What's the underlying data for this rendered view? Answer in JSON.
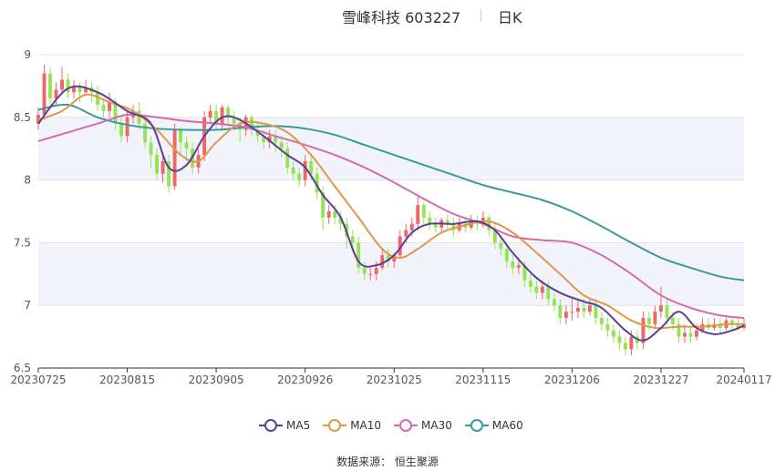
{
  "header": {
    "title": "雪峰科技 603227",
    "subtitle": "日K"
  },
  "source_text": "数据来源： 恒生聚源",
  "colors": {
    "up": "#ee6666",
    "down": "#91e552",
    "ma5": "#5b3e96",
    "ma10": "#e0974a",
    "ma30": "#d46bb0",
    "ma60": "#3a9a9a",
    "band": "#f3f4fb",
    "grid": "#e3e3e3"
  },
  "chart_data": {
    "type": "candlestick",
    "title": "雪峰科技 603227",
    "subtitle": "日K",
    "ylim": [
      6.5,
      9
    ],
    "yticks": [
      "6.5",
      "7",
      "7.5",
      "8",
      "8.5",
      "9"
    ],
    "xtick_labels": [
      "20230725",
      "20230815",
      "20230905",
      "20230926",
      "20231025",
      "20231115",
      "20231206",
      "20231227",
      "20240117"
    ],
    "xtick_positions": [
      0,
      15,
      30,
      45,
      60,
      75,
      90,
      105,
      119
    ],
    "legend": [
      "MA5",
      "MA10",
      "MA30",
      "MA60"
    ],
    "n_days": 120,
    "candles": [
      [
        8.45,
        8.52,
        8.58,
        8.4
      ],
      [
        8.52,
        8.85,
        8.92,
        8.48
      ],
      [
        8.85,
        8.65,
        8.9,
        8.6
      ],
      [
        8.65,
        8.72,
        8.78,
        8.6
      ],
      [
        8.72,
        8.8,
        8.9,
        8.68
      ],
      [
        8.8,
        8.7,
        8.85,
        8.65
      ],
      [
        8.7,
        8.75,
        8.8,
        8.65
      ],
      [
        8.75,
        8.7,
        8.78,
        8.62
      ],
      [
        8.7,
        8.74,
        8.8,
        8.68
      ],
      [
        8.74,
        8.7,
        8.78,
        8.62
      ],
      [
        8.7,
        8.6,
        8.75,
        8.55
      ],
      [
        8.6,
        8.55,
        8.65,
        8.5
      ],
      [
        8.55,
        8.62,
        8.7,
        8.5
      ],
      [
        8.62,
        8.45,
        8.65,
        8.4
      ],
      [
        8.45,
        8.35,
        8.5,
        8.3
      ],
      [
        8.35,
        8.5,
        8.55,
        8.3
      ],
      [
        8.5,
        8.55,
        8.6,
        8.45
      ],
      [
        8.55,
        8.45,
        8.62,
        8.4
      ],
      [
        8.45,
        8.3,
        8.5,
        8.25
      ],
      [
        8.3,
        8.2,
        8.35,
        8.1
      ],
      [
        8.2,
        8.05,
        8.25,
        8.0
      ],
      [
        8.05,
        8.15,
        8.2,
        7.98
      ],
      [
        8.15,
        7.95,
        8.2,
        7.9
      ],
      [
        7.95,
        8.4,
        8.45,
        7.92
      ],
      [
        8.4,
        8.3,
        8.42,
        8.2
      ],
      [
        8.3,
        8.25,
        8.35,
        8.15
      ],
      [
        8.25,
        8.1,
        8.3,
        8.05
      ],
      [
        8.1,
        8.2,
        8.25,
        8.05
      ],
      [
        8.2,
        8.5,
        8.55,
        8.15
      ],
      [
        8.5,
        8.55,
        8.6,
        8.45
      ],
      [
        8.55,
        8.45,
        8.6,
        8.4
      ],
      [
        8.45,
        8.58,
        8.6,
        8.4
      ],
      [
        8.58,
        8.5,
        8.6,
        8.45
      ],
      [
        8.5,
        8.45,
        8.55,
        8.4
      ],
      [
        8.45,
        8.4,
        8.5,
        8.3
      ],
      [
        8.4,
        8.5,
        8.52,
        8.35
      ],
      [
        8.5,
        8.4,
        8.52,
        8.35
      ],
      [
        8.4,
        8.35,
        8.45,
        8.3
      ],
      [
        8.35,
        8.3,
        8.4,
        8.25
      ],
      [
        8.3,
        8.35,
        8.4,
        8.25
      ],
      [
        8.35,
        8.3,
        8.4,
        8.22
      ],
      [
        8.3,
        8.25,
        8.35,
        8.18
      ],
      [
        8.25,
        8.1,
        8.3,
        8.05
      ],
      [
        8.1,
        8.05,
        8.15,
        8.0
      ],
      [
        8.05,
        8.0,
        8.1,
        7.95
      ],
      [
        8.0,
        8.15,
        8.2,
        7.95
      ],
      [
        8.15,
        8.05,
        8.2,
        8.0
      ],
      [
        8.05,
        7.9,
        8.1,
        7.85
      ],
      [
        7.9,
        7.7,
        7.95,
        7.6
      ],
      [
        7.7,
        7.75,
        7.8,
        7.65
      ],
      [
        7.75,
        7.7,
        7.8,
        7.65
      ],
      [
        7.7,
        7.65,
        7.75,
        7.6
      ],
      [
        7.65,
        7.55,
        7.7,
        7.45
      ],
      [
        7.55,
        7.5,
        7.6,
        7.45
      ],
      [
        7.5,
        7.3,
        7.55,
        7.25
      ],
      [
        7.3,
        7.25,
        7.35,
        7.2
      ],
      [
        7.25,
        7.25,
        7.3,
        7.2
      ],
      [
        7.25,
        7.3,
        7.35,
        7.2
      ],
      [
        7.3,
        7.4,
        7.45,
        7.28
      ],
      [
        7.4,
        7.35,
        7.45,
        7.3
      ],
      [
        7.35,
        7.4,
        7.42,
        7.3
      ],
      [
        7.4,
        7.55,
        7.6,
        7.38
      ],
      [
        7.55,
        7.6,
        7.65,
        7.5
      ],
      [
        7.6,
        7.65,
        7.7,
        7.55
      ],
      [
        7.65,
        7.8,
        7.88,
        7.6
      ],
      [
        7.8,
        7.7,
        7.82,
        7.65
      ],
      [
        7.7,
        7.65,
        7.75,
        7.6
      ],
      [
        7.65,
        7.62,
        7.7,
        7.58
      ],
      [
        7.62,
        7.68,
        7.7,
        7.58
      ],
      [
        7.68,
        7.65,
        7.72,
        7.6
      ],
      [
        7.65,
        7.6,
        7.7,
        7.55
      ],
      [
        7.6,
        7.65,
        7.7,
        7.58
      ],
      [
        7.65,
        7.62,
        7.7,
        7.58
      ],
      [
        7.62,
        7.68,
        7.72,
        7.6
      ],
      [
        7.68,
        7.65,
        7.72,
        7.6
      ],
      [
        7.65,
        7.7,
        7.75,
        7.62
      ],
      [
        7.7,
        7.6,
        7.72,
        7.55
      ],
      [
        7.6,
        7.5,
        7.65,
        7.45
      ],
      [
        7.5,
        7.45,
        7.55,
        7.4
      ],
      [
        7.45,
        7.35,
        7.5,
        7.3
      ],
      [
        7.35,
        7.3,
        7.4,
        7.25
      ],
      [
        7.3,
        7.32,
        7.38,
        7.25
      ],
      [
        7.32,
        7.2,
        7.35,
        7.15
      ],
      [
        7.2,
        7.15,
        7.25,
        7.1
      ],
      [
        7.15,
        7.1,
        7.2,
        7.05
      ],
      [
        7.1,
        7.15,
        7.2,
        7.05
      ],
      [
        7.15,
        7.05,
        7.2,
        7.0
      ],
      [
        7.05,
        7.0,
        7.1,
        6.95
      ],
      [
        7.0,
        6.9,
        7.05,
        6.85
      ],
      [
        6.9,
        6.95,
        7.0,
        6.85
      ],
      [
        6.95,
        6.95,
        7.05,
        6.88
      ],
      [
        6.95,
        6.98,
        7.05,
        6.9
      ],
      [
        6.98,
        6.95,
        7.05,
        6.9
      ],
      [
        6.95,
        7.0,
        7.05,
        6.92
      ],
      [
        7.0,
        6.9,
        7.05,
        6.85
      ],
      [
        6.9,
        6.85,
        6.95,
        6.8
      ],
      [
        6.85,
        6.8,
        6.9,
        6.75
      ],
      [
        6.8,
        6.75,
        6.85,
        6.7
      ],
      [
        6.75,
        6.7,
        6.8,
        6.65
      ],
      [
        6.7,
        6.65,
        6.75,
        6.6
      ],
      [
        6.65,
        6.75,
        6.8,
        6.6
      ],
      [
        6.75,
        6.7,
        6.8,
        6.65
      ],
      [
        6.7,
        6.9,
        6.95,
        6.65
      ],
      [
        6.9,
        6.85,
        6.95,
        6.8
      ],
      [
        6.85,
        6.95,
        7.0,
        6.82
      ],
      [
        6.95,
        7.0,
        7.15,
        6.9
      ],
      [
        7.0,
        6.9,
        7.05,
        6.85
      ],
      [
        6.9,
        6.85,
        6.95,
        6.8
      ],
      [
        6.85,
        6.75,
        6.9,
        6.7
      ],
      [
        6.75,
        6.78,
        6.85,
        6.7
      ],
      [
        6.78,
        6.75,
        6.82,
        6.7
      ],
      [
        6.75,
        6.8,
        6.85,
        6.72
      ],
      [
        6.8,
        6.85,
        6.9,
        6.78
      ],
      [
        6.85,
        6.82,
        6.9,
        6.8
      ],
      [
        6.82,
        6.85,
        6.9,
        6.8
      ],
      [
        6.85,
        6.82,
        6.9,
        6.78
      ],
      [
        6.82,
        6.88,
        6.9,
        6.8
      ],
      [
        6.88,
        6.85,
        6.9,
        6.8
      ],
      [
        6.85,
        6.82,
        6.9,
        6.8
      ],
      [
        6.82,
        6.85,
        6.9,
        6.8
      ]
    ],
    "ma5_points": [
      [
        0,
        8.45
      ],
      [
        5,
        8.73
      ],
      [
        10,
        8.7
      ],
      [
        15,
        8.55
      ],
      [
        19,
        8.45
      ],
      [
        22,
        8.1
      ],
      [
        25,
        8.12
      ],
      [
        28,
        8.35
      ],
      [
        31,
        8.5
      ],
      [
        34,
        8.48
      ],
      [
        38,
        8.35
      ],
      [
        42,
        8.2
      ],
      [
        45,
        8.1
      ],
      [
        48,
        7.88
      ],
      [
        51,
        7.7
      ],
      [
        54,
        7.35
      ],
      [
        57,
        7.32
      ],
      [
        60,
        7.4
      ],
      [
        63,
        7.58
      ],
      [
        66,
        7.65
      ],
      [
        70,
        7.65
      ],
      [
        74,
        7.67
      ],
      [
        77,
        7.6
      ],
      [
        80,
        7.42
      ],
      [
        84,
        7.22
      ],
      [
        88,
        7.1
      ],
      [
        92,
        7.03
      ],
      [
        95,
        6.98
      ],
      [
        99,
        6.8
      ],
      [
        102,
        6.72
      ],
      [
        105,
        6.82
      ],
      [
        108,
        6.95
      ],
      [
        111,
        6.82
      ],
      [
        114,
        6.77
      ],
      [
        117,
        6.8
      ],
      [
        119,
        6.84
      ]
    ],
    "ma10_points": [
      [
        0,
        8.48
      ],
      [
        4,
        8.55
      ],
      [
        8,
        8.68
      ],
      [
        12,
        8.62
      ],
      [
        16,
        8.55
      ],
      [
        20,
        8.4
      ],
      [
        24,
        8.2
      ],
      [
        27,
        8.15
      ],
      [
        30,
        8.3
      ],
      [
        34,
        8.45
      ],
      [
        38,
        8.45
      ],
      [
        42,
        8.38
      ],
      [
        46,
        8.2
      ],
      [
        50,
        7.95
      ],
      [
        54,
        7.7
      ],
      [
        58,
        7.45
      ],
      [
        61,
        7.38
      ],
      [
        64,
        7.45
      ],
      [
        68,
        7.58
      ],
      [
        72,
        7.64
      ],
      [
        76,
        7.67
      ],
      [
        80,
        7.58
      ],
      [
        84,
        7.42
      ],
      [
        88,
        7.25
      ],
      [
        92,
        7.08
      ],
      [
        96,
        7.0
      ],
      [
        100,
        6.88
      ],
      [
        104,
        6.82
      ],
      [
        108,
        6.83
      ],
      [
        112,
        6.83
      ],
      [
        116,
        6.85
      ],
      [
        119,
        6.85
      ]
    ],
    "ma30_points": [
      [
        0,
        8.31
      ],
      [
        5,
        8.38
      ],
      [
        10,
        8.45
      ],
      [
        15,
        8.52
      ],
      [
        20,
        8.5
      ],
      [
        25,
        8.47
      ],
      [
        30,
        8.45
      ],
      [
        35,
        8.42
      ],
      [
        40,
        8.35
      ],
      [
        45,
        8.28
      ],
      [
        50,
        8.2
      ],
      [
        55,
        8.1
      ],
      [
        60,
        7.98
      ],
      [
        65,
        7.85
      ],
      [
        70,
        7.73
      ],
      [
        75,
        7.65
      ],
      [
        80,
        7.55
      ],
      [
        85,
        7.52
      ],
      [
        90,
        7.5
      ],
      [
        95,
        7.4
      ],
      [
        100,
        7.25
      ],
      [
        105,
        7.08
      ],
      [
        110,
        6.98
      ],
      [
        115,
        6.92
      ],
      [
        119,
        6.9
      ]
    ],
    "ma60_points": [
      [
        0,
        8.56
      ],
      [
        5,
        8.6
      ],
      [
        10,
        8.5
      ],
      [
        15,
        8.44
      ],
      [
        20,
        8.41
      ],
      [
        25,
        8.4
      ],
      [
        30,
        8.4
      ],
      [
        35,
        8.42
      ],
      [
        40,
        8.43
      ],
      [
        45,
        8.41
      ],
      [
        50,
        8.36
      ],
      [
        55,
        8.28
      ],
      [
        60,
        8.2
      ],
      [
        65,
        8.12
      ],
      [
        70,
        8.04
      ],
      [
        75,
        7.96
      ],
      [
        80,
        7.9
      ],
      [
        85,
        7.84
      ],
      [
        90,
        7.75
      ],
      [
        95,
        7.63
      ],
      [
        100,
        7.5
      ],
      [
        105,
        7.38
      ],
      [
        110,
        7.3
      ],
      [
        115,
        7.23
      ],
      [
        119,
        7.2
      ]
    ]
  }
}
